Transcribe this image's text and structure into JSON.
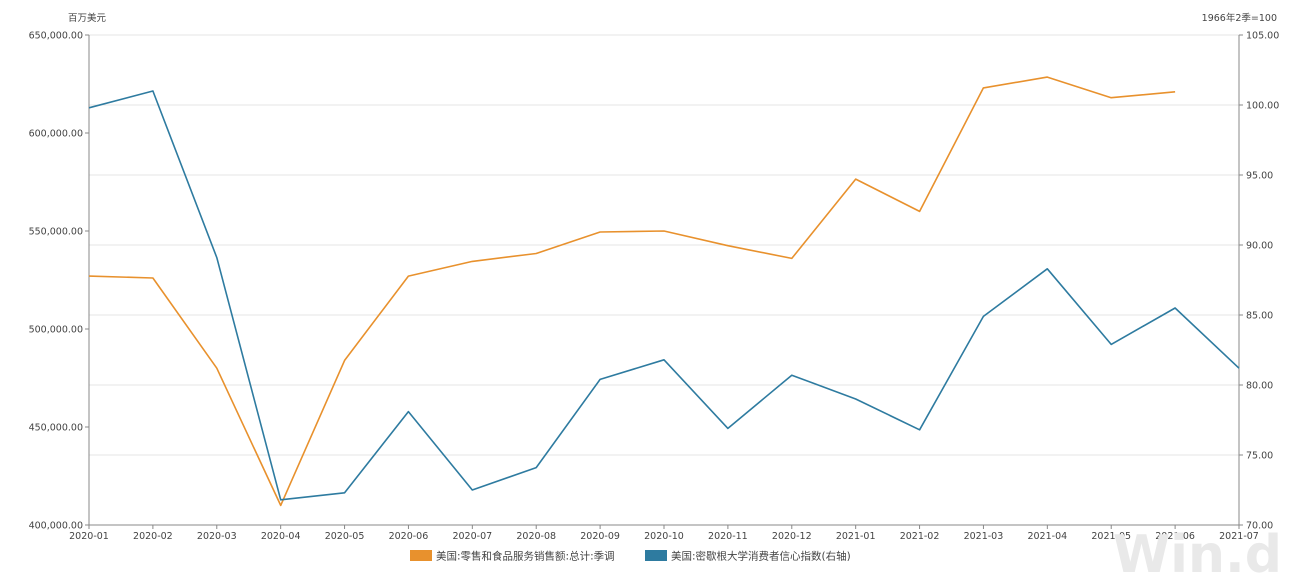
{
  "chart_data": {
    "type": "line",
    "x": [
      "2020-01",
      "2020-02",
      "2020-03",
      "2020-04",
      "2020-05",
      "2020-06",
      "2020-07",
      "2020-08",
      "2020-09",
      "2020-10",
      "2020-11",
      "2020-12",
      "2021-01",
      "2021-02",
      "2021-03",
      "2021-04",
      "2021-05",
      "2021-06",
      "2021-07"
    ],
    "y_left": {
      "unit": "百万美元",
      "range": [
        400000,
        650000
      ],
      "ticks": [
        "400,000.00",
        "450,000.00",
        "500,000.00",
        "550,000.00",
        "600,000.00",
        "650,000.00"
      ]
    },
    "y_right": {
      "unit": "1966年2季=100",
      "range": [
        70,
        105
      ],
      "ticks": [
        "70.00",
        "75.00",
        "80.00",
        "85.00",
        "90.00",
        "95.00",
        "100.00",
        "105.00"
      ]
    },
    "series": [
      {
        "name": "美国:零售和食品服务销售额:总计:季调",
        "axis": "left",
        "color": "#E8912D",
        "values": [
          527000,
          526000,
          480000,
          410000,
          484000,
          527000,
          534500,
          538500,
          549500,
          550000,
          542500,
          536000,
          576500,
          560000,
          623000,
          628500,
          618000,
          621000,
          null
        ]
      },
      {
        "name": "美国:密歇根大学消费者信心指数(右轴)",
        "axis": "right",
        "color": "#2E7BA0",
        "values": [
          99.8,
          101.0,
          89.1,
          71.8,
          72.3,
          78.1,
          72.5,
          74.1,
          80.4,
          81.8,
          76.9,
          80.7,
          79.0,
          76.8,
          84.9,
          88.3,
          82.9,
          85.5,
          81.2
        ]
      }
    ],
    "grid": true,
    "legend_position": "bottom-center"
  },
  "watermark": "Win.d"
}
